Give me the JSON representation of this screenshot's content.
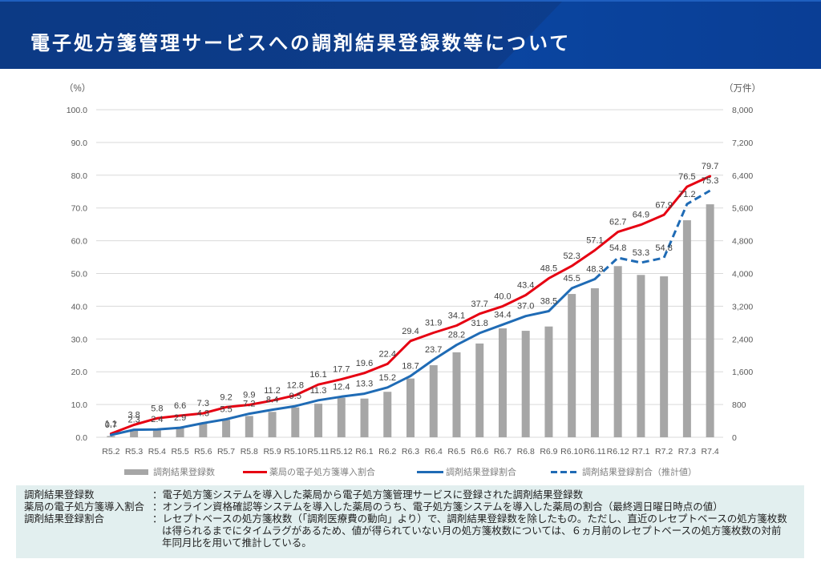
{
  "header": {
    "title": "電子処方箋管理サービスへの調剤結果登録数等について",
    "colors": {
      "band": "#0c3a85",
      "band_accent": "#0d54bb",
      "title_text": "#ffffff"
    }
  },
  "chart_data": {
    "type": "bar+line",
    "title": "",
    "xlabel": "",
    "ylabel": "（%）",
    "y2label": "（万件）",
    "ylim": [
      0,
      100
    ],
    "y2lim": [
      0,
      8000
    ],
    "grid": true,
    "legend_position": "bottom",
    "y_ticks": [
      "0.0",
      "10.0",
      "20.0",
      "30.0",
      "40.0",
      "50.0",
      "60.0",
      "70.0",
      "80.0",
      "90.0",
      "100.0"
    ],
    "y2_ticks": [
      "0",
      "800",
      "1,600",
      "2,400",
      "3,200",
      "4,000",
      "4,800",
      "5,600",
      "6,400",
      "7,200",
      "8,000"
    ],
    "categories": [
      "R5.2",
      "R5.3",
      "R5.4",
      "R5.5",
      "R5.6",
      "R5.7",
      "R5.8",
      "R5.9",
      "R5.10",
      "R5.11",
      "R5.12",
      "R6.1",
      "R6.2",
      "R6.3",
      "R6.4",
      "R6.5",
      "R6.6",
      "R6.7",
      "R6.8",
      "R6.9",
      "R6.10",
      "R6.11",
      "R6.12",
      "R7.1",
      "R7.2",
      "R7.3",
      "R7.4"
    ],
    "series": [
      {
        "name": "調剤結果登録数",
        "type": "bar",
        "axis": "right",
        "unit": "万件",
        "color": "#a6a6a6",
        "show_labels": false,
        "values": [
          30,
          165,
          170,
          225,
          340,
          425,
          520,
          620,
          730,
          820,
          965,
          945,
          1110,
          1435,
          1760,
          2075,
          2290,
          2660,
          2600,
          2705,
          3500,
          3640,
          4180,
          3965,
          3930,
          5300,
          5690
        ]
      },
      {
        "name": "薬局の電子処方箋導入割合",
        "type": "line",
        "axis": "left",
        "unit": "%",
        "color": "#e60012",
        "dashed": false,
        "show_labels": true,
        "values": [
          1.1,
          3.8,
          5.8,
          6.6,
          7.3,
          9.2,
          9.9,
          11.2,
          12.8,
          16.1,
          17.7,
          19.6,
          22.4,
          29.4,
          31.9,
          34.1,
          37.7,
          40.0,
          43.4,
          48.5,
          52.3,
          57.1,
          62.7,
          64.9,
          67.9,
          76.5,
          79.7
        ]
      },
      {
        "name": "調剤結果登録割合",
        "type": "line",
        "axis": "left",
        "unit": "%",
        "color": "#1f6bb5",
        "dashed": false,
        "show_labels": true,
        "values": [
          0.7,
          2.3,
          2.4,
          2.9,
          4.3,
          5.5,
          7.2,
          8.4,
          9.5,
          11.3,
          12.4,
          13.3,
          15.2,
          18.7,
          23.7,
          28.2,
          31.8,
          34.4,
          37.0,
          38.5,
          45.5,
          48.3,
          null,
          null,
          null,
          null,
          null
        ]
      },
      {
        "name": "調剤結果登録割合（推計値）",
        "type": "line",
        "axis": "left",
        "unit": "%",
        "color": "#1f6bb5",
        "dashed": true,
        "show_labels": true,
        "values": [
          null,
          null,
          null,
          null,
          null,
          null,
          null,
          null,
          null,
          null,
          null,
          null,
          null,
          null,
          null,
          null,
          null,
          null,
          null,
          null,
          null,
          48.3,
          54.8,
          53.3,
          54.8,
          71.2,
          75.3
        ]
      }
    ]
  },
  "footer": {
    "separator": "：",
    "notes": [
      {
        "term": "調剤結果登録数",
        "desc": "電子処方箋システムを導入した薬局から電子処方箋管理サービスに登録された調剤結果登録数"
      },
      {
        "term": "薬局の電子処方箋導入割合",
        "desc": "オンライン資格確認等システムを導入した薬局のうち、電子処方箋システムを導入した薬局の割合（最終週日曜日時点の値）"
      },
      {
        "term": "調剤結果登録割合",
        "desc": "レセプトベースの処方箋枚数（「調剤医療費の動向」より）で、調剤結果登録数を除したもの。ただし、直近のレセプトベースの処方箋枚数は得られるまでにタイムラグがあるため、値が得られていない月の処方箋枚数については、６ヵ月前のレセプトベースの処方箋枚数の対前年同月比を用いて推計している。"
      }
    ]
  }
}
